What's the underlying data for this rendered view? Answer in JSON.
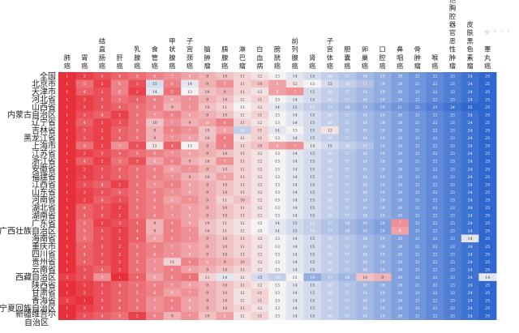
{
  "chart_data": {
    "type": "heatmap",
    "title": "",
    "value_meaning": "rank (1 = highest)",
    "value_range": [
      1,
      25
    ],
    "colors": {
      "low": "#e8303a",
      "mid": "#f4f2f2",
      "high": "#2f67cf"
    },
    "columns": [
      "肺癌",
      "胃癌",
      "结直肠癌",
      "肝癌",
      "乳腺癌",
      "食管癌",
      "甲状腺癌",
      "子宫颈癌",
      "脑肿瘤",
      "胰腺癌",
      "淋巴瘤",
      "白血病",
      "膀胱癌",
      "前列腺癌",
      "肾癌",
      "子宫体癌",
      "胆囊癌",
      "卵巢癌",
      "口腔癌",
      "鼻咽癌",
      "骨肿瘤",
      "喉癌",
      "其他胸腔器官恶性肿瘤",
      "皮肤黑色素瘤",
      "睾丸癌"
    ],
    "rows": [
      {
        "name": "全国",
        "values": [
          1,
          2,
          3,
          4,
          5,
          6,
          7,
          8,
          9,
          10,
          11,
          12,
          13,
          14,
          15,
          16,
          17,
          18,
          19,
          20,
          21,
          22,
          23,
          24,
          25
        ]
      },
      {
        "name": "北京市",
        "values": [
          1,
          5,
          2,
          6,
          3,
          15,
          6,
          14,
          9,
          7,
          11,
          10,
          8,
          12,
          13,
          15,
          16,
          17,
          19,
          20,
          21,
          22,
          23,
          24,
          25
        ]
      },
      {
        "name": "天津市",
        "values": [
          1,
          4,
          3,
          6,
          2,
          14,
          5,
          13,
          10,
          9,
          11,
          12,
          8,
          7,
          15,
          16,
          17,
          18,
          19,
          20,
          21,
          22,
          23,
          24,
          25
        ]
      },
      {
        "name": "河北省",
        "values": [
          1,
          2,
          3,
          5,
          4,
          6,
          8,
          7,
          9,
          10,
          12,
          11,
          13,
          14,
          15,
          16,
          17,
          18,
          19,
          20,
          21,
          22,
          23,
          24,
          25
        ]
      },
      {
        "name": "山西省",
        "values": [
          1,
          2,
          3,
          4,
          5,
          6,
          9,
          7,
          10,
          11,
          13,
          12,
          14,
          15,
          16,
          17,
          18,
          19,
          20,
          21,
          22,
          23,
          24,
          25,
          25
        ]
      },
      {
        "name": "内蒙古自治区",
        "values": [
          1,
          3,
          4,
          2,
          5,
          7,
          6,
          8,
          9,
          10,
          12,
          11,
          13,
          14,
          15,
          16,
          17,
          18,
          19,
          20,
          21,
          22,
          23,
          24,
          25
        ]
      },
      {
        "name": "辽宁省",
        "values": [
          1,
          4,
          2,
          3,
          5,
          10,
          7,
          9,
          8,
          6,
          11,
          12,
          13,
          14,
          15,
          16,
          17,
          18,
          19,
          20,
          21,
          22,
          23,
          24,
          25
        ]
      },
      {
        "name": "吉林省",
        "values": [
          1,
          3,
          2,
          4,
          5,
          9,
          6,
          7,
          10,
          8,
          16,
          11,
          14,
          13,
          15,
          12,
          17,
          18,
          19,
          20,
          21,
          22,
          23,
          24,
          25
        ]
      },
      {
        "name": "黑龙江省",
        "values": [
          1,
          3,
          2,
          4,
          5,
          9,
          7,
          8,
          10,
          6,
          12,
          11,
          13,
          14,
          15,
          16,
          17,
          18,
          19,
          20,
          21,
          22,
          23,
          24,
          25
        ]
      },
      {
        "name": "上海市",
        "values": [
          1,
          5,
          2,
          7,
          3,
          12,
          4,
          13,
          9,
          6,
          11,
          10,
          8,
          7,
          14,
          15,
          16,
          17,
          19,
          20,
          21,
          22,
          23,
          24,
          25
        ]
      },
      {
        "name": "江苏省",
        "values": [
          1,
          2,
          3,
          4,
          5,
          6,
          7,
          8,
          9,
          10,
          11,
          12,
          13,
          14,
          15,
          16,
          17,
          18,
          19,
          20,
          21,
          22,
          23,
          24,
          25
        ]
      },
      {
        "name": "浙江省",
        "values": [
          1,
          4,
          2,
          5,
          3,
          8,
          6,
          9,
          10,
          7,
          11,
          12,
          13,
          14,
          15,
          16,
          17,
          18,
          19,
          20,
          21,
          22,
          23,
          24,
          25
        ]
      },
      {
        "name": "安徽省",
        "values": [
          1,
          2,
          3,
          4,
          5,
          6,
          8,
          7,
          9,
          10,
          11,
          12,
          13,
          14,
          15,
          16,
          17,
          18,
          19,
          20,
          21,
          22,
          23,
          24,
          25
        ]
      },
      {
        "name": "福建省",
        "values": [
          1,
          2,
          3,
          4,
          5,
          6,
          7,
          9,
          10,
          8,
          11,
          12,
          13,
          14,
          15,
          16,
          17,
          18,
          19,
          20,
          21,
          22,
          23,
          24,
          25
        ]
      },
      {
        "name": "江西省",
        "values": [
          1,
          3,
          4,
          2,
          5,
          7,
          6,
          8,
          9,
          10,
          11,
          12,
          13,
          14,
          15,
          16,
          17,
          18,
          19,
          20,
          21,
          22,
          23,
          24,
          25
        ]
      },
      {
        "name": "山东省",
        "values": [
          1,
          2,
          3,
          4,
          5,
          6,
          7,
          8,
          9,
          10,
          11,
          12,
          13,
          14,
          15,
          16,
          17,
          18,
          19,
          20,
          21,
          22,
          23,
          24,
          25
        ]
      },
      {
        "name": "河南省",
        "values": [
          1,
          2,
          4,
          3,
          5,
          6,
          8,
          7,
          9,
          11,
          10,
          12,
          13,
          14,
          15,
          16,
          17,
          18,
          19,
          20,
          21,
          22,
          23,
          24,
          25
        ]
      },
      {
        "name": "湖北省",
        "values": [
          1,
          4,
          3,
          2,
          5,
          6,
          7,
          8,
          9,
          10,
          11,
          12,
          13,
          14,
          15,
          16,
          17,
          18,
          19,
          20,
          21,
          22,
          23,
          24,
          25
        ]
      },
      {
        "name": "湖南省",
        "values": [
          1,
          4,
          3,
          2,
          5,
          6,
          7,
          8,
          9,
          10,
          11,
          12,
          13,
          14,
          15,
          16,
          17,
          18,
          19,
          20,
          21,
          22,
          23,
          24,
          25
        ]
      },
      {
        "name": "广东省",
        "values": [
          1,
          5,
          2,
          3,
          4,
          9,
          6,
          8,
          10,
          11,
          12,
          13,
          14,
          15,
          16,
          17,
          18,
          19,
          20,
          7,
          21,
          22,
          23,
          24,
          25
        ]
      },
      {
        "name": "广西壮族自治区",
        "values": [
          1,
          5,
          3,
          2,
          4,
          9,
          6,
          7,
          10,
          11,
          12,
          13,
          14,
          15,
          16,
          17,
          18,
          19,
          20,
          8,
          21,
          22,
          23,
          24,
          25
        ]
      },
      {
        "name": "海南省",
        "values": [
          1,
          5,
          3,
          2,
          4,
          8,
          6,
          7,
          9,
          10,
          11,
          12,
          13,
          14,
          15,
          16,
          17,
          18,
          19,
          20,
          21,
          22,
          23,
          14,
          25
        ]
      },
      {
        "name": "重庆市",
        "values": [
          1,
          4,
          3,
          2,
          5,
          6,
          7,
          8,
          9,
          10,
          11,
          12,
          13,
          14,
          15,
          16,
          17,
          18,
          19,
          20,
          21,
          22,
          23,
          24,
          25
        ]
      },
      {
        "name": "四川省",
        "values": [
          1,
          4,
          3,
          2,
          5,
          6,
          7,
          8,
          9,
          10,
          11,
          12,
          13,
          14,
          15,
          16,
          17,
          18,
          19,
          20,
          21,
          22,
          23,
          24,
          25
        ]
      },
      {
        "name": "贵州省",
        "values": [
          1,
          4,
          3,
          2,
          5,
          7,
          11,
          6,
          8,
          9,
          10,
          12,
          13,
          14,
          15,
          16,
          17,
          18,
          19,
          20,
          21,
          22,
          23,
          24,
          25
        ]
      },
      {
        "name": "云南省",
        "values": [
          1,
          3,
          4,
          2,
          5,
          7,
          6,
          8,
          9,
          10,
          11,
          12,
          13,
          14,
          15,
          16,
          17,
          18,
          19,
          20,
          21,
          22,
          23,
          24,
          25
        ]
      },
      {
        "name": "西藏自治区",
        "values": [
          2,
          3,
          7,
          1,
          4,
          8,
          6,
          5,
          11,
          14,
          12,
          15,
          16,
          13,
          19,
          17,
          18,
          10,
          9,
          20,
          21,
          22,
          23,
          24,
          14
        ]
      },
      {
        "name": "陕西省",
        "values": [
          1,
          2,
          3,
          4,
          5,
          6,
          7,
          8,
          9,
          10,
          11,
          12,
          13,
          14,
          15,
          16,
          17,
          18,
          19,
          20,
          21,
          22,
          23,
          24,
          25
        ]
      },
      {
        "name": "甘肃省",
        "values": [
          1,
          2,
          3,
          4,
          5,
          6,
          8,
          7,
          9,
          10,
          12,
          11,
          13,
          14,
          15,
          16,
          17,
          18,
          19,
          20,
          21,
          22,
          23,
          24,
          25
        ]
      },
      {
        "name": "青海省",
        "values": [
          2,
          1,
          3,
          4,
          5,
          7,
          6,
          8,
          9,
          10,
          12,
          11,
          13,
          14,
          15,
          16,
          17,
          18,
          19,
          20,
          21,
          22,
          23,
          24,
          25
        ]
      },
      {
        "name": "宁夏回族自治区",
        "values": [
          1,
          2,
          3,
          4,
          5,
          7,
          6,
          8,
          9,
          10,
          11,
          12,
          13,
          14,
          15,
          16,
          17,
          18,
          19,
          20,
          21,
          22,
          23,
          24,
          25
        ]
      },
      {
        "name": "新疆维吾尔自治区",
        "values": [
          1,
          3,
          4,
          5,
          2,
          6,
          9,
          7,
          10,
          8,
          12,
          11,
          13,
          14,
          15,
          16,
          17,
          18,
          19,
          20,
          21,
          22,
          23,
          24,
          25
        ]
      }
    ]
  }
}
